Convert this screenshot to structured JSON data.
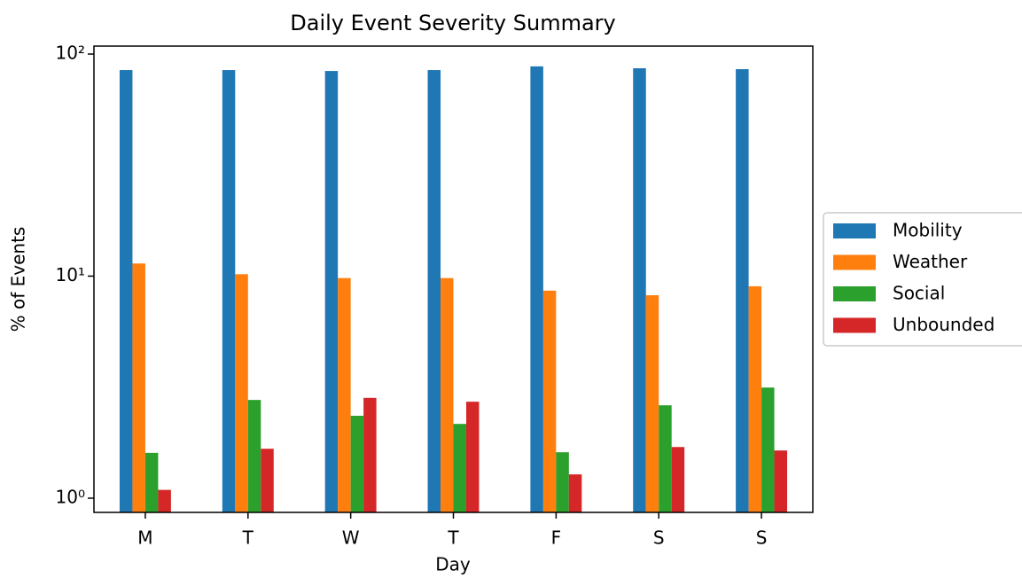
{
  "chart_data": {
    "type": "bar",
    "title": "Daily Event Severity Summary",
    "xlabel": "Day",
    "ylabel": "% of Events",
    "categories": [
      "M",
      "T",
      "W",
      "T",
      "F",
      "S",
      "S"
    ],
    "series": [
      {
        "name": "Mobility",
        "color": "#1f77b4",
        "values": [
          84.7,
          84.7,
          83.9,
          84.7,
          88.0,
          86.3,
          85.5
        ]
      },
      {
        "name": "Weather",
        "color": "#ff7f0e",
        "values": [
          11.4,
          10.2,
          9.8,
          9.8,
          8.6,
          8.2,
          9.0
        ]
      },
      {
        "name": "Social",
        "color": "#2ca02c",
        "values": [
          1.6,
          2.77,
          2.35,
          2.16,
          1.61,
          2.62,
          3.15
        ]
      },
      {
        "name": "Unbounded",
        "color": "#d62728",
        "values": [
          1.09,
          1.67,
          2.83,
          2.72,
          1.28,
          1.7,
          1.64
        ]
      }
    ],
    "yscale": "log",
    "ylim": [
      0.863,
      108.6
    ],
    "yticks": [
      {
        "value": 1,
        "label": "10⁰"
      },
      {
        "value": 10,
        "label": "10¹"
      },
      {
        "value": 100,
        "label": "10²"
      }
    ],
    "legend": "right"
  }
}
